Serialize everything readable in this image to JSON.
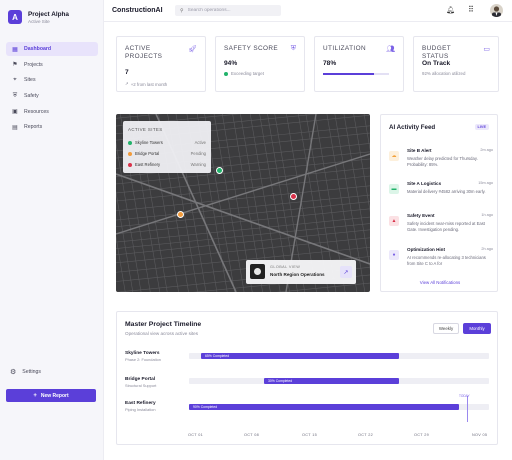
{
  "brand": {
    "logo_letter": "A",
    "title": "Project Alpha",
    "subtitle": "Active Site"
  },
  "sidebar": {
    "items": [
      {
        "label": "Dashboard",
        "icon": "dashboard-icon",
        "active": true
      },
      {
        "label": "Projects",
        "icon": "projects-icon"
      },
      {
        "label": "Sites",
        "icon": "location-pin-icon"
      },
      {
        "label": "Safety",
        "icon": "shield-icon"
      },
      {
        "label": "Resources",
        "icon": "box-icon"
      },
      {
        "label": "Reports",
        "icon": "document-icon"
      }
    ],
    "settings_label": "Settings",
    "new_report_label": "New Report"
  },
  "topbar": {
    "app_title": "ConstructionAI",
    "search_placeholder": "Search operations..."
  },
  "kpis": [
    {
      "label": "ACTIVE PROJECTS",
      "value": "7",
      "sub": "+2 from last month",
      "icon": "rocket-icon"
    },
    {
      "label": "SAFETY SCORE",
      "value": "94%",
      "sub": "Exceeding target",
      "icon": "shield-icon"
    },
    {
      "label": "UTILIZATION",
      "value": "78%",
      "progress": 0.78,
      "icon": "people-icon"
    },
    {
      "label": "BUDGET STATUS",
      "value": "On Track",
      "sub": "92% allocation utilized",
      "icon": "wallet-icon"
    }
  ],
  "map": {
    "sites_title": "ACTIVE SITES",
    "sites": [
      {
        "name": "Skyline Towers",
        "status": "Active",
        "color": "#22b36b"
      },
      {
        "name": "Bridge Portal",
        "status": "Pending",
        "color": "#f29b3b"
      },
      {
        "name": "East Refinery",
        "status": "Warning",
        "color": "#d9324a"
      }
    ],
    "global_view_label": "GLOBAL VIEW",
    "global_view_name": "North Region Operations"
  },
  "feed": {
    "title": "AI Activity Feed",
    "badge": "LIVE",
    "items": [
      {
        "title": "Site B Alert",
        "time": "2m ago",
        "desc": "Weather delay predicted for Thursday. Probability: 85%.",
        "icon": "cloud-icon",
        "color": "#f2a13b"
      },
      {
        "title": "Site A Logistics",
        "time": "15m ago",
        "desc": "Material delivery #4582 arriving 30m early.",
        "icon": "truck-icon",
        "color": "#22b36b"
      },
      {
        "title": "Safety Event",
        "time": "1h ago",
        "desc": "Safety incident near-miss reported at East Gate. Investigation pending.",
        "icon": "warning-icon",
        "color": "#d9324a"
      },
      {
        "title": "Optimization Hint",
        "time": "2h ago",
        "desc": "AI recommends re-allocating 3 technicians from Site C to A for",
        "icon": "lightbulb-icon",
        "color": "#7b62e6"
      }
    ],
    "view_all": "View All Notifications"
  },
  "timeline": {
    "title": "Master Project Timeline",
    "subtitle": "Operational view across active sites",
    "weekly": "Weekly",
    "monthly": "Monthly",
    "today_label": "TODAY",
    "projects": [
      {
        "name": "Skyline Towers",
        "phase": "Phase 2: Foundation",
        "bar_label": "65% Completed",
        "start": 0.04,
        "end": 0.7
      },
      {
        "name": "Bridge Portal",
        "phase": "Structural Support",
        "bar_label": "30% Completed",
        "start": 0.25,
        "end": 0.7
      },
      {
        "name": "East Refinery",
        "phase": "Piping Installation",
        "bar_label": "90% Completed",
        "start": 0.0,
        "end": 0.9
      }
    ],
    "ticks": [
      "OCT 01",
      "OCT 08",
      "OCT 15",
      "OCT 22",
      "OCT 29",
      "NOV 05"
    ]
  }
}
